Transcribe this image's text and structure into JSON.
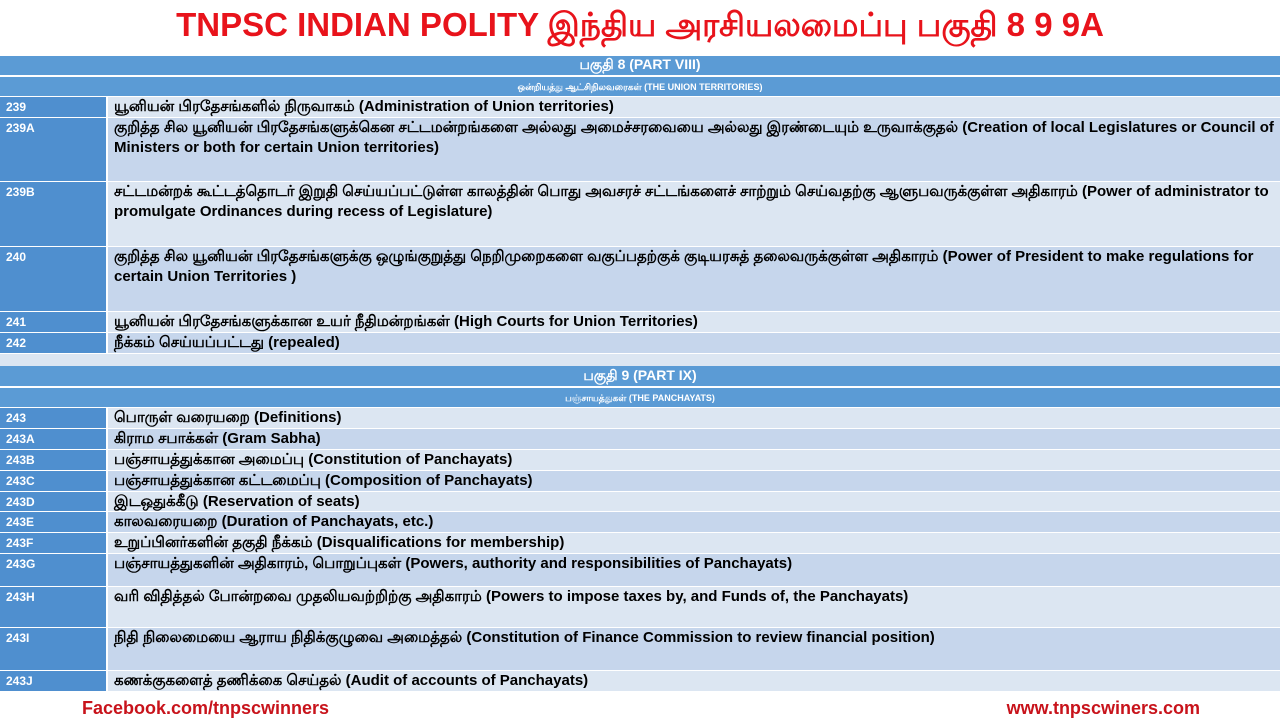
{
  "title": "TNPSC INDIAN POLITY இந்திய அரசியலமைப்பு பகுதி 8 9 9A",
  "parts": [
    {
      "header": "பகுதி 8 (PART VIII)",
      "subheader": "ஒன்றியத்து ஆட்சிநிலவரைகள் (THE UNION TERRITORIES)",
      "rows": [
        {
          "article": "239",
          "text": "யூனியன் பிரதேசங்களில் நிருவாகம் (Administration of Union territories)"
        },
        {
          "article": "239A",
          "text": "குறித்த சில யூனியன் பிரதேசங்களுக்கென சட்டமன்றங்களை அல்லது அமைச்சரவையை அல்லது இரண்டையும் உருவாக்குதல் (Creation of local Legislatures or Council of Ministers or both for certain Union territories)"
        },
        {
          "article": "239B",
          "text": "சட்டமன்றக் கூட்டத்தொடர் இறுதி செய்யப்பட்டுள்ள காலத்தின் பொது அவசரச் சட்டங்களைச் சாற்றும் செய்வதற்கு ஆளுபவருக்குள்ள அதிகாரம் (Power of administrator to promulgate Ordinances during recess of Legislature)"
        },
        {
          "article": "240",
          "text": "குறித்த சில யூனியன் பிரதேசங்களுக்கு ஒழுங்குறுத்து நெறிமுறைகளை வகுப்பதற்குக் குடியரசுத் தலைவருக்குள்ள அதிகாரம் (Power of President to make regulations for certain Union Territories )"
        },
        {
          "article": "241",
          "text": "யூனியன் பிரதேசங்களுக்கான உயர் நீதிமன்றங்கள் (High Courts for Union Territories)"
        },
        {
          "article": "242",
          "text": "நீக்கம் செய்யப்பட்டது (repealed)"
        }
      ]
    },
    {
      "header": "பகுதி 9 (PART IX)",
      "subheader": "பஞ்சாயத்துகள் (THE PANCHAYATS)",
      "rows": [
        {
          "article": "243",
          "text": "பொருள் வரையறை (Definitions)"
        },
        {
          "article": "243A",
          "text": "கிராம சபாக்கள் (Gram Sabha)"
        },
        {
          "article": "243B",
          "text": "பஞ்சாயத்துக்கான அமைப்பு (Constitution of Panchayats)"
        },
        {
          "article": "243C",
          "text": "பஞ்சாயத்துக்கான கட்டமைப்பு (Composition of Panchayats)"
        },
        {
          "article": "243D",
          "text": "இடஒதுக்கீடு (Reservation of seats)"
        },
        {
          "article": "243E",
          "text": "காலவரையறை (Duration of Panchayats, etc.)"
        },
        {
          "article": "243F",
          "text": "உறுப்பினர்களின் தகுதி நீக்கம் (Disqualifications for membership)"
        },
        {
          "article": "243G",
          "text": "பஞ்சாயத்துகளின் அதிகாரம், பொறுப்புகள் (Powers, authority and responsibilities of Panchayats)"
        },
        {
          "article": "243H",
          "text": "வரி விதித்தல் போன்றவை முதலியவற்றிற்கு அதிகாரம் (Powers to impose taxes by, and Funds of, the Panchayats)"
        },
        {
          "article": "243I",
          "text": "நிதி நிலைமையை ஆராய நிதிக்குழுவை அமைத்தல் (Constitution of Finance Commission to review financial position)"
        },
        {
          "article": "243J",
          "text": "கணக்குகளைத் தணிக்கை செய்தல் (Audit of accounts of Panchayats)"
        }
      ]
    }
  ],
  "footer": {
    "left": "Facebook.com/tnpscwinners",
    "right": "www.tnpscwiners.com"
  },
  "colors": {
    "title": "#e8131b",
    "header": "#5b9bd5",
    "row_light": "#dce6f2",
    "row_dark": "#c6d6ec"
  }
}
